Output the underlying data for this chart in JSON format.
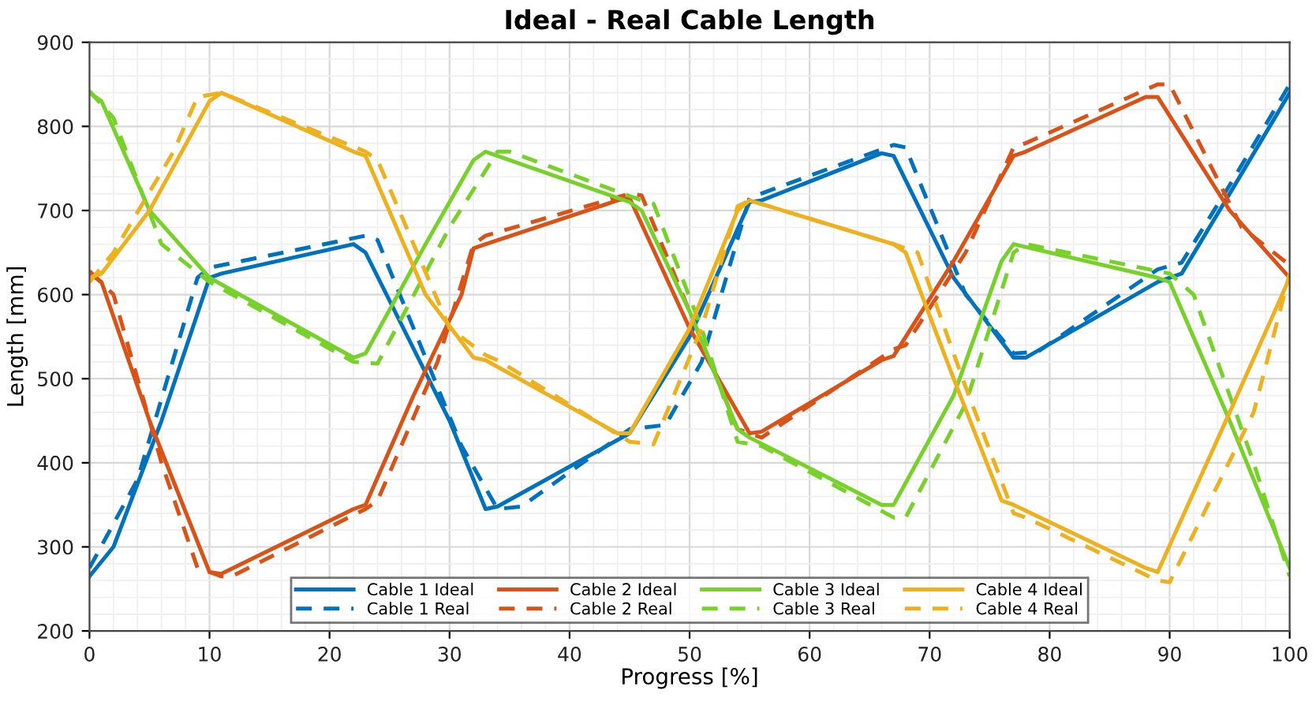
{
  "chart_data": {
    "type": "line",
    "title": "Ideal - Real Cable Length",
    "xlabel": "Progress [%]",
    "ylabel": "Length [mm]",
    "xlim": [
      0,
      100
    ],
    "xticks": [
      0,
      10,
      20,
      30,
      40,
      50,
      60,
      70,
      80,
      90,
      100
    ],
    "ylim": [
      200,
      900
    ],
    "yticks": [
      200,
      300,
      400,
      500,
      600,
      700,
      800,
      900
    ],
    "grid": true,
    "legend": "bottom",
    "marker": "none",
    "series": [
      {
        "name": "Cable 1 Ideal",
        "color": "#0072bd",
        "line_style": "solid",
        "x": [
          0,
          2,
          6,
          10,
          11,
          22,
          23,
          30,
          33,
          34,
          45,
          50,
          55,
          56,
          66,
          67,
          72,
          77,
          78,
          89,
          91,
          95,
          100
        ],
        "values": [
          265,
          300,
          450,
          620,
          625,
          660,
          650,
          450,
          345,
          348,
          435,
          550,
          710,
          712,
          768,
          765,
          620,
          525,
          525,
          615,
          625,
          720,
          840
        ]
      },
      {
        "name": "Cable 1 Real",
        "color": "#0072bd",
        "line_style": "dashed",
        "x": [
          0,
          4,
          9,
          10,
          23,
          24,
          31,
          34,
          36,
          45,
          48,
          51,
          55,
          67,
          68,
          73,
          77,
          79,
          89,
          91,
          95,
          100
        ],
        "values": [
          275,
          380,
          620,
          632,
          670,
          665,
          420,
          345,
          348,
          440,
          445,
          520,
          715,
          778,
          775,
          600,
          530,
          532,
          630,
          638,
          730,
          850
        ]
      },
      {
        "name": "Cable 2 Ideal",
        "color": "#d95319",
        "line_style": "solid",
        "x": [
          0,
          1,
          5,
          10,
          11,
          22,
          23,
          27,
          31,
          32,
          33,
          44,
          45,
          50,
          55,
          56,
          66,
          67,
          72,
          77,
          78,
          88,
          89,
          95,
          100
        ],
        "values": [
          625,
          615,
          450,
          270,
          268,
          345,
          350,
          480,
          600,
          655,
          660,
          712,
          715,
          560,
          435,
          437,
          522,
          527,
          640,
          765,
          770,
          835,
          835,
          700,
          620
        ]
      },
      {
        "name": "Cable 2 Real",
        "color": "#d95319",
        "line_style": "dashed",
        "x": [
          0,
          2,
          6,
          9,
          11,
          12,
          23,
          24,
          29,
          32,
          33,
          45,
          46,
          50,
          54,
          56,
          67,
          68,
          73,
          77,
          78,
          89,
          90,
          96,
          100
        ],
        "values": [
          628,
          600,
          400,
          275,
          265,
          266,
          345,
          355,
          520,
          660,
          670,
          720,
          718,
          580,
          440,
          430,
          535,
          540,
          650,
          775,
          780,
          850,
          850,
          680,
          635
        ]
      },
      {
        "name": "Cable 3 Ideal",
        "color": "#77d12a",
        "line_style": "solid",
        "x": [
          0,
          1,
          5,
          10,
          22,
          23,
          28,
          32,
          33,
          45,
          46,
          50,
          54,
          55,
          66,
          67,
          72,
          76,
          77,
          89,
          90,
          95,
          100
        ],
        "values": [
          840,
          830,
          700,
          620,
          525,
          530,
          660,
          760,
          770,
          710,
          700,
          580,
          440,
          430,
          350,
          350,
          480,
          640,
          660,
          620,
          615,
          450,
          275
        ]
      },
      {
        "name": "Cable 3 Real",
        "color": "#77d12a",
        "line_style": "dashed",
        "x": [
          0,
          2,
          6,
          10,
          22,
          24,
          30,
          34,
          35,
          46,
          47,
          51,
          54,
          56,
          67,
          68,
          73,
          77,
          78,
          90,
          92,
          97,
          100
        ],
        "values": [
          842,
          810,
          660,
          615,
          520,
          518,
          680,
          770,
          770,
          712,
          708,
          560,
          425,
          420,
          335,
          335,
          470,
          650,
          660,
          625,
          600,
          400,
          265
        ]
      },
      {
        "name": "Cable 4 Ideal",
        "color": "#edb120",
        "line_style": "solid",
        "x": [
          0,
          1,
          5,
          10,
          11,
          22,
          23,
          28,
          32,
          33,
          44,
          45,
          50,
          54,
          55,
          67,
          68,
          72,
          76,
          77,
          88,
          89,
          95,
          100
        ],
        "values": [
          620,
          625,
          700,
          830,
          840,
          770,
          765,
          600,
          525,
          522,
          435,
          435,
          560,
          700,
          712,
          660,
          650,
          500,
          355,
          350,
          275,
          270,
          460,
          620
        ]
      },
      {
        "name": "Cable 4 Real",
        "color": "#edb120",
        "line_style": "dashed",
        "x": [
          0,
          2,
          7,
          9,
          11,
          23,
          24,
          30,
          33,
          34,
          45,
          47,
          51,
          54,
          55,
          67,
          69,
          73,
          77,
          78,
          89,
          90,
          97,
          100
        ],
        "values": [
          615,
          650,
          770,
          835,
          840,
          770,
          760,
          560,
          528,
          522,
          425,
          422,
          560,
          705,
          712,
          660,
          650,
          490,
          340,
          335,
          260,
          258,
          460,
          625
        ]
      }
    ]
  }
}
